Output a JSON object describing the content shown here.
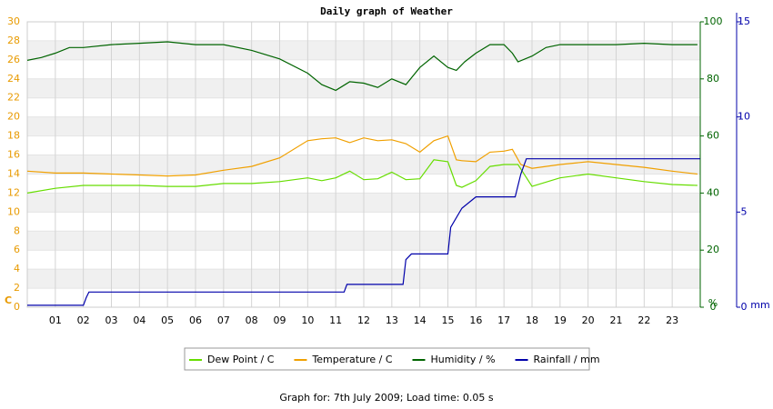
{
  "chart_data": {
    "type": "line",
    "title": "Daily graph of Weather",
    "footer": "Graph for: 7th July 2009; Load time: 0.05 s",
    "y_label": "C",
    "y2_label": "%",
    "y3_label": "mm",
    "y_color": "#e89a00",
    "y2_color": "#006400",
    "y3_color": "#0000aa",
    "xlim": [
      0,
      24
    ],
    "xticks": [
      {
        "value": 1,
        "label": "01"
      },
      {
        "value": 2,
        "label": "02"
      },
      {
        "value": 3,
        "label": "03"
      },
      {
        "value": 4,
        "label": "04"
      },
      {
        "value": 5,
        "label": "05"
      },
      {
        "value": 6,
        "label": "06"
      },
      {
        "value": 7,
        "label": "07"
      },
      {
        "value": 8,
        "label": "08"
      },
      {
        "value": 9,
        "label": "09"
      },
      {
        "value": 10,
        "label": "10"
      },
      {
        "value": 11,
        "label": "11"
      },
      {
        "value": 12,
        "label": "12"
      },
      {
        "value": 13,
        "label": "13"
      },
      {
        "value": 14,
        "label": "14"
      },
      {
        "value": 15,
        "label": "15"
      },
      {
        "value": 16,
        "label": "16"
      },
      {
        "value": 17,
        "label": "17"
      },
      {
        "value": 18,
        "label": "18"
      },
      {
        "value": 19,
        "label": "19"
      },
      {
        "value": 20,
        "label": "20"
      },
      {
        "value": 21,
        "label": "21"
      },
      {
        "value": 22,
        "label": "22"
      },
      {
        "value": 23,
        "label": "23"
      }
    ],
    "ylim": [
      0,
      30
    ],
    "yticks": [
      0,
      2,
      4,
      6,
      8,
      10,
      12,
      14,
      16,
      18,
      20,
      22,
      24,
      26,
      28,
      30
    ],
    "y2lim": [
      0,
      100
    ],
    "y2ticks": [
      0,
      20,
      40,
      60,
      80,
      100
    ],
    "y3lim": [
      0,
      15
    ],
    "y3ticks": [
      0,
      5,
      10,
      15
    ],
    "grid": true,
    "series": [
      {
        "name": "Dew Point / C",
        "color": "#66dd00",
        "axis": "y",
        "x": [
          0,
          1,
          2,
          3,
          4,
          5,
          6,
          7,
          8,
          9,
          10,
          10.5,
          11,
          11.5,
          12,
          12.5,
          13,
          13.5,
          14,
          14.5,
          15,
          15.3,
          15.5,
          16,
          16.5,
          17,
          17.5,
          18,
          19,
          20,
          21,
          22,
          23,
          23.9
        ],
        "values": [
          12.0,
          12.5,
          12.8,
          12.8,
          12.8,
          12.7,
          12.7,
          13.0,
          13.0,
          13.2,
          13.6,
          13.3,
          13.6,
          14.3,
          13.4,
          13.5,
          14.2,
          13.4,
          13.5,
          15.5,
          15.3,
          12.8,
          12.6,
          13.3,
          14.8,
          15.0,
          15.0,
          12.7,
          13.6,
          14.0,
          13.6,
          13.2,
          12.9,
          12.8
        ]
      },
      {
        "name": "Temperature / C",
        "color": "#f0a000",
        "axis": "y",
        "x": [
          0,
          1,
          2,
          3,
          4,
          5,
          6,
          7,
          8,
          9,
          10,
          10.5,
          11,
          11.5,
          12,
          12.5,
          13,
          13.5,
          14,
          14.5,
          15,
          15.3,
          15.5,
          16,
          16.5,
          17,
          17.3,
          17.6,
          18,
          19,
          20,
          21,
          22,
          23,
          23.9
        ],
        "values": [
          14.3,
          14.1,
          14.1,
          14.0,
          13.9,
          13.8,
          13.9,
          14.4,
          14.8,
          15.7,
          17.5,
          17.7,
          17.8,
          17.3,
          17.8,
          17.5,
          17.6,
          17.2,
          16.3,
          17.5,
          18.0,
          15.5,
          15.4,
          15.3,
          16.3,
          16.4,
          16.6,
          15.0,
          14.6,
          15.0,
          15.3,
          15.0,
          14.7,
          14.3,
          14.0
        ]
      },
      {
        "name": "Humidity / %",
        "color": "#006400",
        "axis": "y2",
        "x": [
          0,
          0.5,
          1,
          1.5,
          2,
          3,
          4,
          5,
          6,
          7,
          8,
          9,
          10,
          10.5,
          11,
          11.5,
          12,
          12.5,
          13,
          13.5,
          14,
          14.5,
          15,
          15.3,
          15.6,
          16,
          16.5,
          17,
          17.3,
          17.5,
          18,
          18.5,
          19,
          20,
          21,
          22,
          23,
          23.9
        ],
        "values": [
          86.5,
          87.5,
          89,
          91,
          91,
          92,
          92.5,
          93,
          92,
          92,
          90,
          87,
          82,
          78,
          76,
          79,
          78.5,
          77,
          80,
          78,
          84,
          88,
          84,
          83,
          86,
          89,
          92,
          92,
          89,
          86,
          88,
          91,
          92,
          92,
          92,
          92.5,
          92,
          92
        ]
      },
      {
        "name": "Rainfall / mm",
        "color": "#0000aa",
        "axis": "y3",
        "x": [
          0,
          2,
          2.1,
          2.2,
          11.3,
          11.4,
          13.4,
          13.5,
          13.7,
          15,
          15.1,
          15.5,
          16,
          17.4,
          17.6,
          17.8,
          24
        ],
        "values": [
          0.1,
          0.1,
          0.5,
          0.8,
          0.8,
          1.2,
          1.2,
          2.5,
          2.8,
          2.8,
          4.2,
          5.2,
          5.8,
          5.8,
          7.0,
          7.8,
          7.8
        ]
      }
    ]
  }
}
